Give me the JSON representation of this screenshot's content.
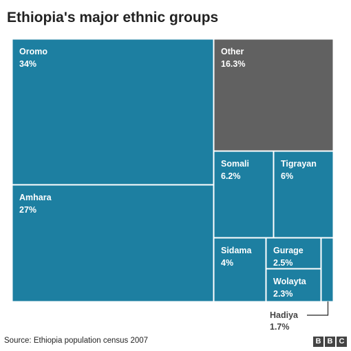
{
  "chart_data": {
    "type": "treemap",
    "title": "Ethiopia's major ethnic groups",
    "source": "Source: Ethiopia population census 2007",
    "series": [
      {
        "name": "Oromo",
        "value": 34,
        "label": "34%"
      },
      {
        "name": "Other",
        "value": 16.3,
        "label": "16.3%"
      },
      {
        "name": "Amhara",
        "value": 27,
        "label": "27%"
      },
      {
        "name": "Somali",
        "value": 6.2,
        "label": "6.2%"
      },
      {
        "name": "Tigrayan",
        "value": 6,
        "label": "6%"
      },
      {
        "name": "Sidama",
        "value": 4,
        "label": "4%"
      },
      {
        "name": "Gurage",
        "value": 2.5,
        "label": "2.5%"
      },
      {
        "name": "Wolayta",
        "value": 2.3,
        "label": "2.3%"
      },
      {
        "name": "Hadiya",
        "value": 1.7,
        "label": "1.7%"
      }
    ]
  },
  "colors": {
    "group": "#1d7fa1",
    "other": "#616161",
    "border": "#ffffff"
  },
  "logo": {
    "letters": [
      "B",
      "B",
      "C"
    ]
  }
}
